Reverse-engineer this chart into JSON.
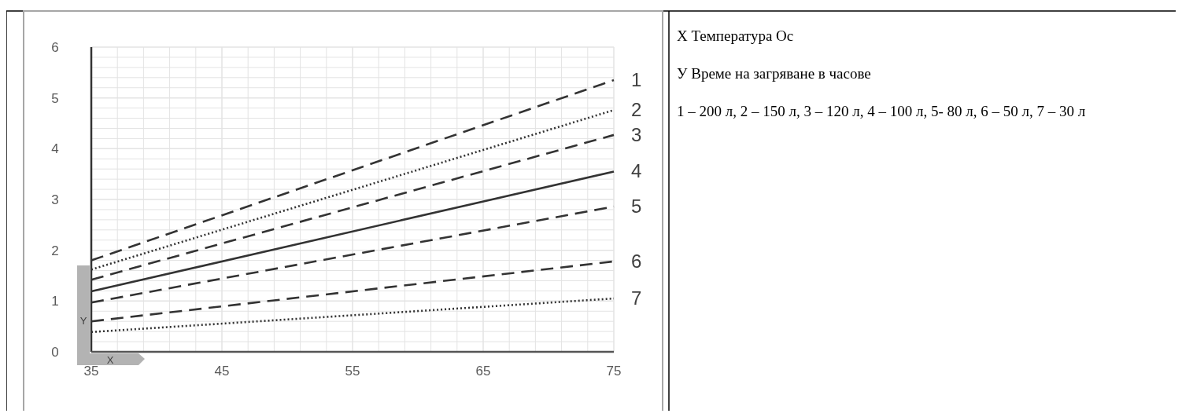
{
  "chart_data": {
    "type": "line",
    "x": [
      35,
      75
    ],
    "series": [
      {
        "name": "1",
        "color": "#333333",
        "values": [
          1.8,
          5.35
        ],
        "line_style": "dashed"
      },
      {
        "name": "2",
        "color": "#333333",
        "values": [
          1.62,
          4.76
        ],
        "line_style": "dotted"
      },
      {
        "name": "3",
        "color": "#333333",
        "values": [
          1.42,
          4.27
        ],
        "line_style": "dashed"
      },
      {
        "name": "4",
        "color": "#333333",
        "values": [
          1.19,
          3.55
        ],
        "line_style": "solid"
      },
      {
        "name": "5",
        "color": "#333333",
        "values": [
          0.97,
          2.86
        ],
        "line_style": "dashed"
      },
      {
        "name": "6",
        "color": "#333333",
        "values": [
          0.6,
          1.78
        ],
        "line_style": "dashed"
      },
      {
        "name": "7",
        "color": "#333333",
        "values": [
          0.39,
          1.05
        ],
        "line_style": "dotted"
      }
    ],
    "xlim": [
      35,
      75
    ],
    "xticks": [
      35,
      {
        "value": 37,
        "label": null
      },
      {
        "value": 39,
        "label": null
      },
      {
        "value": 41,
        "label": null
      },
      {
        "value": 43,
        "label": null
      },
      45,
      {
        "value": 47,
        "label": null
      },
      {
        "value": 49,
        "label": null
      },
      {
        "value": 51,
        "label": null
      },
      {
        "value": 53,
        "label": null
      },
      55,
      {
        "value": 57,
        "label": null
      },
      {
        "value": 59,
        "label": null
      },
      {
        "value": 61,
        "label": null
      },
      {
        "value": 63,
        "label": null
      },
      65,
      {
        "value": 67,
        "label": null
      },
      {
        "value": 69,
        "label": null
      },
      {
        "value": 71,
        "label": null
      },
      {
        "value": 73,
        "label": null
      },
      75
    ],
    "ylim": [
      0,
      6
    ],
    "yticks": [
      0,
      {
        "value": 0.2,
        "label": null
      },
      {
        "value": 0.4,
        "label": null
      },
      {
        "value": 0.6,
        "label": null
      },
      {
        "value": 0.8,
        "label": null
      },
      1,
      {
        "value": 1.2,
        "label": null
      },
      {
        "value": 1.4,
        "label": null
      },
      {
        "value": 1.6,
        "label": null
      },
      {
        "value": 1.8,
        "label": null
      },
      2,
      {
        "value": 2.2,
        "label": null
      },
      {
        "value": 2.4,
        "label": null
      },
      {
        "value": 2.6,
        "label": null
      },
      {
        "value": 2.8,
        "label": null
      },
      3,
      {
        "value": 3.2,
        "label": null
      },
      {
        "value": 3.4,
        "label": null
      },
      {
        "value": 3.6,
        "label": null
      },
      {
        "value": 3.8,
        "label": null
      },
      4,
      {
        "value": 4.2,
        "label": null
      },
      {
        "value": 4.4,
        "label": null
      },
      {
        "value": 4.6,
        "label": null
      },
      {
        "value": 4.8,
        "label": null
      },
      5,
      {
        "value": 5.2,
        "label": null
      },
      {
        "value": 5.4,
        "label": null
      },
      {
        "value": 5.6,
        "label": null
      },
      {
        "value": 5.8,
        "label": null
      },
      6
    ],
    "grid": true,
    "marker": "none",
    "annotations": [
      "Y",
      "X",
      "X Температура Ос",
      "У Време на загряване в часове",
      "1 – 200 л, 2 – 150 л, 3 – 120 л, 4 – 100 л, 5- 80 л, 6 – 50 л, 7 – 30 л"
    ]
  }
}
